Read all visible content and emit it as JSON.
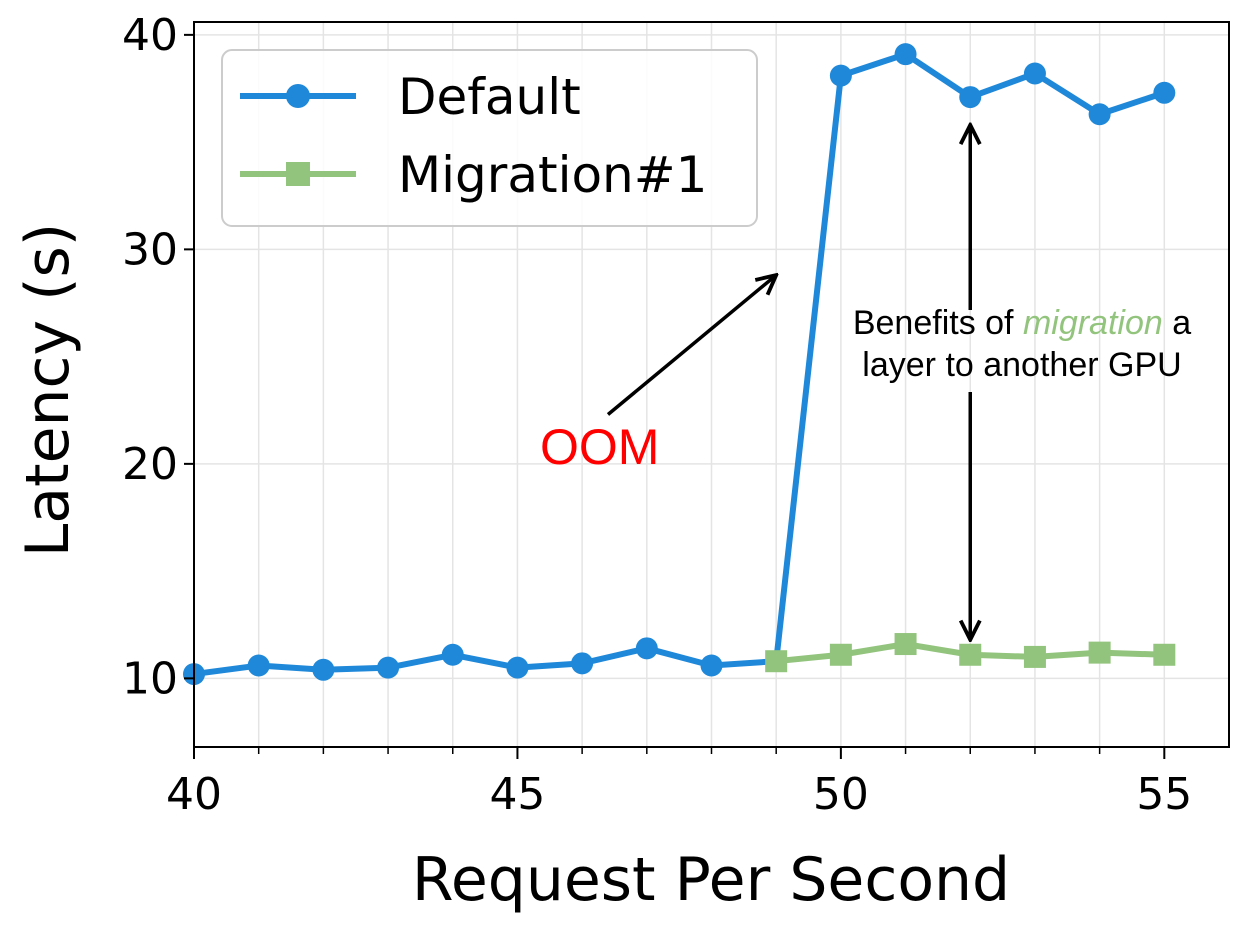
{
  "chart_data": {
    "type": "line",
    "title": "",
    "xlabel": "Request Per Second",
    "ylabel": "Latency (s)",
    "xlim": [
      40,
      56
    ],
    "ylim": [
      6.8,
      40.6
    ],
    "x_ticks": [
      40,
      45,
      50,
      55
    ],
    "x_minor_ticks": [
      41,
      42,
      43,
      44,
      46,
      47,
      48,
      49,
      51,
      52,
      53,
      54
    ],
    "y_ticks": [
      10,
      20,
      30,
      40
    ],
    "grid": true,
    "legend_position": "upper-left",
    "series": [
      {
        "name": "Default",
        "color": "#1f88d9",
        "marker": "circle",
        "x": [
          40,
          41,
          42,
          43,
          44,
          45,
          46,
          47,
          48,
          49,
          50,
          51,
          52,
          53,
          54,
          55
        ],
        "y": [
          10.2,
          10.6,
          10.4,
          10.5,
          11.1,
          10.5,
          10.7,
          11.4,
          10.6,
          10.8,
          38.1,
          39.1,
          37.1,
          38.2,
          36.3,
          37.3
        ],
        "marker_x": [
          40,
          41,
          42,
          43,
          44,
          45,
          46,
          47,
          48,
          50,
          51,
          52,
          53,
          54,
          55
        ]
      },
      {
        "name": "Migration#1",
        "color": "#93c47d",
        "marker": "square",
        "x": [
          49,
          50,
          51,
          52,
          53,
          54,
          55
        ],
        "y": [
          10.8,
          11.1,
          11.6,
          11.1,
          11.0,
          11.2,
          11.1
        ]
      }
    ],
    "annotations": {
      "oom_label": "OOM",
      "oom_color": "#ff0000",
      "oom_arrow_from": [
        46.4,
        22.3
      ],
      "oom_arrow_to": [
        49.0,
        28.8
      ],
      "benefit_prefix": "Benefits of ",
      "benefit_emphasis": "migration",
      "benefit_suffix": " a",
      "benefit_line2": "layer to another GPU",
      "benefit_emphasis_color": "#93c47d",
      "benefit_arrow_x": 52,
      "benefit_arrow_top": 35.8,
      "benefit_arrow_bottom": 11.8
    }
  }
}
